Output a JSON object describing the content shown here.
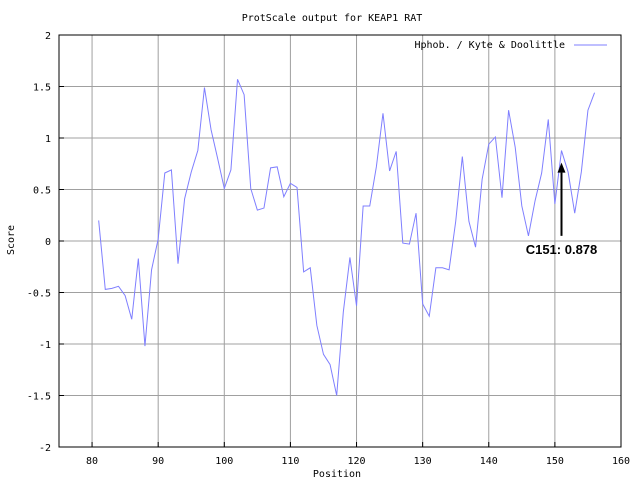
{
  "chart_data": {
    "type": "line",
    "title": "ProtScale output for KEAP1 RAT",
    "xlabel": "Position",
    "ylabel": "Score",
    "xlim": [
      75,
      160
    ],
    "ylim": [
      -2,
      2
    ],
    "grid": true,
    "legend_position": "top-right",
    "xticks": [
      80,
      90,
      100,
      110,
      120,
      130,
      140,
      150,
      160
    ],
    "yticks": [
      -2,
      -1.5,
      -1,
      -0.5,
      0,
      0.5,
      1,
      1.5,
      2
    ],
    "xtick_labels": [
      "80",
      "90",
      "100",
      "110",
      "120",
      "130",
      "140",
      "150",
      "160"
    ],
    "ytick_labels": [
      "-2",
      "-1.5",
      "-1",
      "-0.5",
      "0",
      "0.5",
      "1",
      "1.5",
      "2"
    ],
    "series": [
      {
        "name": "Hphob. / Kyte & Doolittle",
        "color": "#7f7fff",
        "x": [
          81,
          82,
          83,
          84,
          85,
          86,
          87,
          88,
          89,
          90,
          91,
          92,
          93,
          94,
          95,
          96,
          97,
          98,
          99,
          100,
          101,
          102,
          103,
          104,
          105,
          106,
          107,
          108,
          109,
          110,
          111,
          112,
          113,
          114,
          115,
          116,
          117,
          118,
          119,
          120,
          121,
          122,
          123,
          124,
          125,
          126,
          127,
          128,
          129,
          130,
          131,
          132,
          133,
          134,
          135,
          136,
          137,
          138,
          139,
          140,
          141,
          142,
          143,
          144,
          145,
          146,
          147,
          148,
          149,
          150,
          151,
          152,
          153,
          154,
          155,
          156
        ],
        "y": [
          0.2,
          -0.47,
          -0.46,
          -0.44,
          -0.53,
          -0.76,
          -0.17,
          -1.02,
          -0.28,
          0.02,
          0.66,
          0.69,
          -0.22,
          0.41,
          0.67,
          0.88,
          1.49,
          1.08,
          0.8,
          0.51,
          0.69,
          1.57,
          1.42,
          0.51,
          0.3,
          0.32,
          0.71,
          0.72,
          0.43,
          0.56,
          0.52,
          -0.3,
          -0.26,
          -0.82,
          -1.1,
          -1.2,
          -1.5,
          -0.69,
          -0.16,
          -0.63,
          0.34,
          0.34,
          0.72,
          1.24,
          0.68,
          0.87,
          -0.02,
          -0.03,
          0.27,
          -0.61,
          -0.73,
          -0.26,
          -0.26,
          -0.28,
          0.19,
          0.82,
          0.19,
          -0.06,
          0.6,
          0.94,
          1.01,
          0.42,
          1.27,
          0.91,
          0.34,
          0.05,
          0.39,
          0.66,
          1.18,
          0.36,
          0.878,
          0.67,
          0.27,
          0.67,
          1.27,
          1.44
        ]
      }
    ],
    "annotations": [
      {
        "text": "C151: 0.878",
        "x": 151,
        "y": 0.878,
        "arrow_from_y": 0.05
      }
    ]
  }
}
